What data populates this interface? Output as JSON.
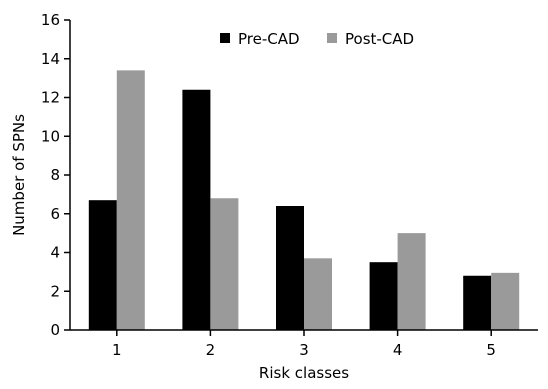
{
  "chart_data": {
    "type": "bar",
    "categories": [
      "1",
      "2",
      "3",
      "4",
      "5"
    ],
    "series": [
      {
        "name": "Pre-CAD",
        "values": [
          6.7,
          12.4,
          6.4,
          3.5,
          2.8
        ],
        "color": "#000000"
      },
      {
        "name": "Post-CAD",
        "values": [
          13.4,
          6.8,
          3.7,
          5.0,
          2.95
        ],
        "color": "#9a9a9a"
      }
    ],
    "xlabel": "Risk classes",
    "ylabel": "Number of SPNs",
    "ylim": [
      0,
      16
    ],
    "yticks": [
      "0",
      "2",
      "4",
      "6",
      "8",
      "10",
      "12",
      "14",
      "16"
    ],
    "grid": false,
    "legend_position": "top-right"
  }
}
